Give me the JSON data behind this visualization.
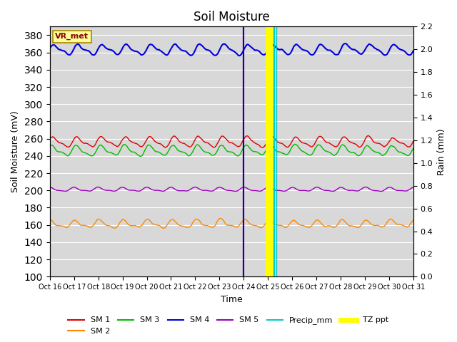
{
  "title": "Soil Moisture",
  "ylabel_left": "Soil Moisture (mV)",
  "ylabel_right": "Rain (mm)",
  "xlabel": "Time",
  "ylim_left": [
    100,
    390
  ],
  "ylim_right": [
    0.0,
    2.2
  ],
  "yticks_left": [
    100,
    120,
    140,
    160,
    180,
    200,
    220,
    240,
    260,
    280,
    300,
    320,
    340,
    360,
    380
  ],
  "yticks_right": [
    0.0,
    0.2,
    0.4,
    0.6,
    0.8,
    1.0,
    1.2,
    1.4,
    1.6,
    1.8,
    2.0,
    2.2
  ],
  "xtick_labels": [
    "Oct 16",
    "Oct 17",
    "Oct 18",
    "Oct 19",
    "Oct 20",
    "Oct 21",
    "Oct 22",
    "Oct 23",
    "Oct 24",
    "Oct 25",
    "Oct 26",
    "Oct 27",
    "Oct 28",
    "Oct 29",
    "Oct 30",
    "Oct 31"
  ],
  "n_days": 15,
  "sm1_base": 256,
  "sm1_amp": 5,
  "sm2_base": 161,
  "sm2_amp": 4,
  "sm3_base": 246,
  "sm3_amp": 5,
  "sm4_base": 363,
  "sm4_amp": 5,
  "sm5_base": 201,
  "sm5_amp": 2,
  "colors": {
    "SM1": "#dd0000",
    "SM2": "#ff8800",
    "SM3": "#00bb00",
    "SM4": "#0000dd",
    "SM5": "#9900bb",
    "Precip": "#00cccc",
    "TZ": "#ffff00"
  },
  "vr_met_box_color": "#ffff99",
  "vr_met_text_color": "#880000",
  "background_color": "#d8d8d8",
  "figure_color": "#ffffff",
  "grid_color": "#ffffff",
  "spike_blue_day": 8,
  "spike_purple_day": 8,
  "spike_orange_day": 8,
  "spike_tz_day": 9,
  "spike_cyan_day": 9,
  "spike_cyan2_day": 9
}
